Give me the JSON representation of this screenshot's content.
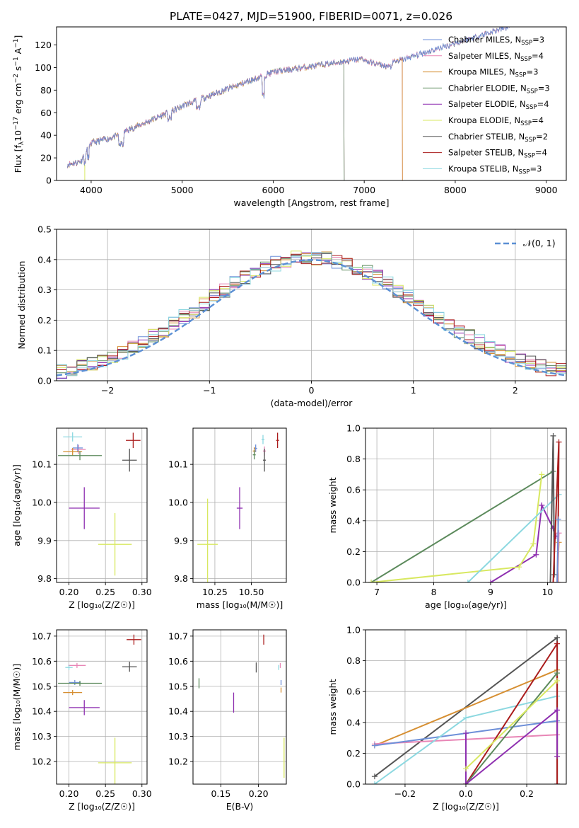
{
  "figure_title": "PLATE=0427, MJD=51900, FIBERID=0071, z=0.026",
  "colors": {
    "chabrier_miles": "#6d8fd8",
    "salpeter_miles": "#e886b6",
    "kroupa_miles": "#d68f32",
    "chabrier_elodie": "#5c8a5c",
    "salpeter_elodie": "#8e2fb0",
    "kroupa_elodie": "#d8e860",
    "chabrier_stelib": "#555555",
    "salpeter_stelib": "#aa1c1c",
    "kroupa_stelib": "#8cd8e0",
    "normal_curve": "#5b8fd4"
  },
  "chart_data": [
    {
      "id": "spectrum",
      "type": "line",
      "xlabel": "wavelength [Angstrom, rest frame]",
      "ylabel": "Flux [f",
      "ylabel_tail": "10",
      "ylabel_exp": "−17",
      "ylabel_rest": " erg cm",
      "ylabel_rest_exp": "−2",
      "ylabel_s": " s",
      "ylabel_s_exp": "−1",
      "ylabel_A": " A",
      "ylabel_A_exp": "−1",
      "ylabel_end": "]",
      "xlim": [
        3620,
        9220
      ],
      "ylim": [
        0,
        136
      ],
      "xticks": [
        "4000",
        "5000",
        "6000",
        "7000",
        "8000",
        "9000"
      ],
      "yticks": [
        "0",
        "20",
        "40",
        "60",
        "80",
        "100",
        "120"
      ],
      "series": [
        {
          "key": "chabrier_miles",
          "legend": "Chabrier MILES, N",
          "sub": "SSP",
          "eq": "=3",
          "end": 8700
        },
        {
          "key": "salpeter_miles",
          "legend": "Salpeter MILES, N",
          "sub": "SSP",
          "eq": "=4",
          "end": 8700
        },
        {
          "key": "kroupa_miles",
          "legend": "Kroupa MILES, N",
          "sub": "SSP",
          "eq": "=3",
          "end": 7420
        },
        {
          "key": "chabrier_elodie",
          "legend": "Chabrier ELODIE, N",
          "sub": "SSP",
          "eq": "=3",
          "end": 6780
        },
        {
          "key": "salpeter_elodie",
          "legend": "Salpeter ELODIE, N",
          "sub": "SSP",
          "eq": "=4",
          "end": 6780
        },
        {
          "key": "kroupa_elodie",
          "legend": "Kroupa ELODIE, N",
          "sub": "SSP",
          "eq": "=4",
          "end": 6780
        },
        {
          "key": "chabrier_stelib",
          "legend": "Chabrier STELIB, N",
          "sub": "SSP",
          "eq": "=2",
          "end": 8700
        },
        {
          "key": "salpeter_stelib",
          "legend": "Salpeter STELIB, N",
          "sub": "SSP",
          "eq": "=4",
          "end": 7420
        },
        {
          "key": "kroupa_stelib",
          "legend": "Kroupa STELIB, N",
          "sub": "SSP",
          "eq": "=3",
          "end": 8700
        }
      ]
    },
    {
      "id": "residuals",
      "type": "line",
      "xlabel": "(data-model)/error",
      "ylabel": "Normed distribution",
      "xlim": [
        -2.5,
        2.5
      ],
      "ylim": [
        0,
        0.5
      ],
      "xticks": [
        "−2",
        "−1",
        "0",
        "1",
        "2"
      ],
      "yticks": [
        "0.0",
        "0.1",
        "0.2",
        "0.3",
        "0.4",
        "0.5"
      ],
      "legend": "𝒩(0, 1)",
      "bin_width": 0.1
    },
    {
      "id": "age_vs_Z",
      "type": "scatter",
      "xlabel": "Z [log₁₀(Z/Z☉)]",
      "ylabel": "age  [log₁₀(age/yr)]",
      "xlim": [
        0.183,
        0.307
      ],
      "ylim": [
        9.79,
        10.195
      ],
      "xticks": [
        "0.20",
        "0.25",
        "0.30"
      ],
      "yticks": [
        "9.8",
        "9.9",
        "10.0",
        "10.1"
      ],
      "points": [
        {
          "key": "kroupa_stelib",
          "x": 0.205,
          "y": 10.172,
          "dx": 0.013,
          "dy": 0.012
        },
        {
          "key": "salpeter_miles",
          "x": 0.213,
          "y": 10.139,
          "dx": 0.01,
          "dy": 0.012
        },
        {
          "key": "chabrier_miles",
          "x": 0.212,
          "y": 10.143,
          "dx": 0.007,
          "dy": 0.01
        },
        {
          "key": "kroupa_miles",
          "x": 0.205,
          "y": 10.133,
          "dx": 0.013,
          "dy": 0.01
        },
        {
          "key": "chabrier_elodie",
          "x": 0.215,
          "y": 10.123,
          "dx": 0.03,
          "dy": 0.012
        },
        {
          "key": "salpeter_stelib",
          "x": 0.288,
          "y": 10.163,
          "dx": 0.01,
          "dy": 0.02
        },
        {
          "key": "chabrier_stelib",
          "x": 0.283,
          "y": 10.111,
          "dx": 0.01,
          "dy": 0.03
        },
        {
          "key": "salpeter_elodie",
          "x": 0.221,
          "y": 9.985,
          "dx": 0.021,
          "dy": 0.055
        },
        {
          "key": "kroupa_elodie",
          "x": 0.263,
          "y": 9.89,
          "dx": 0.023,
          "dy": 0.082
        }
      ]
    },
    {
      "id": "age_vs_mass",
      "type": "scatter",
      "xlabel": "mass [log₁₀(M/M☉)]",
      "ylabel": "",
      "xlim": [
        10.1,
        10.74
      ],
      "ylim": [
        9.79,
        10.195
      ],
      "xticks": [
        "10.25",
        "10.50"
      ],
      "yticks": [
        "9.8",
        "9.9",
        "10.0",
        "10.1"
      ],
      "points": [
        {
          "key": "kroupa_stelib",
          "x": 10.58,
          "y": 10.165,
          "dx": 0.01,
          "dy": 0.012
        },
        {
          "key": "salpeter_miles",
          "x": 10.59,
          "y": 10.135,
          "dx": 0.01,
          "dy": 0.012
        },
        {
          "key": "chabrier_miles",
          "x": 10.53,
          "y": 10.142,
          "dx": 0.01,
          "dy": 0.01
        },
        {
          "key": "kroupa_miles",
          "x": 10.52,
          "y": 10.135,
          "dx": 0.01,
          "dy": 0.01
        },
        {
          "key": "chabrier_elodie",
          "x": 10.52,
          "y": 10.125,
          "dx": 0.01,
          "dy": 0.012
        },
        {
          "key": "salpeter_stelib",
          "x": 10.68,
          "y": 10.163,
          "dx": 0.01,
          "dy": 0.02
        },
        {
          "key": "chabrier_stelib",
          "x": 10.59,
          "y": 10.111,
          "dx": 0.01,
          "dy": 0.03
        },
        {
          "key": "salpeter_elodie",
          "x": 10.42,
          "y": 9.985,
          "dx": 0.02,
          "dy": 0.055
        },
        {
          "key": "kroupa_elodie",
          "x": 10.2,
          "y": 9.89,
          "dx": 0.07,
          "dy": 0.12
        }
      ]
    },
    {
      "id": "weight_vs_age",
      "type": "line",
      "xlabel": "age  [log₁₀(age/yr)]",
      "ylabel": "mass weight",
      "xlim": [
        6.8,
        10.33
      ],
      "ylim": [
        0,
        1
      ],
      "xticks": [
        "7",
        "8",
        "9",
        "10"
      ],
      "yticks": [
        "0.0",
        "0.2",
        "0.4",
        "0.6",
        "0.8",
        "1.0"
      ],
      "series": [
        {
          "key": "chabrier_elodie",
          "x": [
            6.9,
            10.1
          ],
          "y": [
            0.0,
            0.72
          ]
        },
        {
          "key": "salpeter_elodie",
          "x": [
            9.0,
            9.8,
            9.9,
            10.1,
            10.15
          ],
          "y": [
            0.0,
            0.18,
            0.5,
            0.35,
            0.3
          ]
        },
        {
          "key": "kroupa_elodie",
          "x": [
            6.9,
            9.5,
            9.75,
            9.9
          ],
          "y": [
            0.0,
            0.1,
            0.25,
            0.7
          ]
        },
        {
          "key": "kroupa_stelib",
          "x": [
            8.6,
            10.2
          ],
          "y": [
            0.0,
            0.57
          ]
        },
        {
          "key": "chabrier_stelib",
          "x": [
            10.05,
            10.1,
            10.12
          ],
          "y": [
            0.0,
            0.95,
            0.05
          ]
        },
        {
          "key": "salpeter_stelib",
          "x": [
            10.1,
            10.2,
            10.18
          ],
          "y": [
            0.0,
            0.91,
            0.0
          ]
        },
        {
          "key": "kroupa_miles",
          "x": [
            10.17,
            10.2
          ],
          "y": [
            0.0,
            0.26
          ]
        },
        {
          "key": "salpeter_miles",
          "x": [
            10.17,
            10.2
          ],
          "y": [
            0.0,
            0.32
          ]
        },
        {
          "key": "chabrier_miles",
          "x": [
            10.17,
            10.19
          ],
          "y": [
            0.0,
            0.41
          ]
        }
      ]
    },
    {
      "id": "mass_vs_Z",
      "type": "scatter",
      "xlabel": "Z [log₁₀(Z/Z☉)]",
      "ylabel": "mass [log₁₀(M/M☉)]",
      "xlim": [
        0.183,
        0.307
      ],
      "ylim": [
        10.11,
        10.725
      ],
      "xticks": [
        "0.20",
        "0.25",
        "0.30"
      ],
      "yticks": [
        "10.2",
        "10.3",
        "10.4",
        "10.5",
        "10.6",
        "10.7"
      ],
      "points": [
        {
          "key": "salpeter_stelib",
          "x": 0.289,
          "y": 10.686,
          "dx": 0.01,
          "dy": 0.02
        },
        {
          "key": "salpeter_miles",
          "x": 0.211,
          "y": 10.583,
          "dx": 0.012,
          "dy": 0.01
        },
        {
          "key": "kroupa_stelib",
          "x": 0.2,
          "y": 10.575,
          "dx": 0.005,
          "dy": 0.01
        },
        {
          "key": "chabrier_stelib",
          "x": 0.283,
          "y": 10.578,
          "dx": 0.01,
          "dy": 0.02
        },
        {
          "key": "chabrier_miles",
          "x": 0.208,
          "y": 10.515,
          "dx": 0.008,
          "dy": 0.01
        },
        {
          "key": "chabrier_elodie",
          "x": 0.215,
          "y": 10.512,
          "dx": 0.03,
          "dy": 0.01
        },
        {
          "key": "kroupa_miles",
          "x": 0.205,
          "y": 10.475,
          "dx": 0.013,
          "dy": 0.01
        },
        {
          "key": "salpeter_elodie",
          "x": 0.221,
          "y": 10.415,
          "dx": 0.021,
          "dy": 0.03
        },
        {
          "key": "kroupa_elodie",
          "x": 0.263,
          "y": 10.195,
          "dx": 0.023,
          "dy": 0.1
        }
      ]
    },
    {
      "id": "mass_vs_ebv",
      "type": "scatter",
      "xlabel": "E(B-V)",
      "ylabel": "",
      "xlim": [
        0.113,
        0.237
      ],
      "ylim": [
        10.11,
        10.725
      ],
      "xticks": [
        "0.15",
        "0.20"
      ],
      "yticks": [
        "10.2",
        "10.3",
        "10.4",
        "10.5",
        "10.6",
        "10.7"
      ],
      "points": [
        {
          "key": "salpeter_stelib",
          "x": 0.207,
          "y": 10.686,
          "dy": 0.02
        },
        {
          "key": "salpeter_miles",
          "x": 0.229,
          "y": 10.583,
          "dy": 0.01
        },
        {
          "key": "kroupa_stelib",
          "x": 0.227,
          "y": 10.575,
          "dy": 0.01
        },
        {
          "key": "chabrier_stelib",
          "x": 0.197,
          "y": 10.575,
          "dy": 0.02
        },
        {
          "key": "chabrier_miles",
          "x": 0.23,
          "y": 10.515,
          "dy": 0.01
        },
        {
          "key": "chabrier_elodie",
          "x": 0.121,
          "y": 10.512,
          "dy": 0.02
        },
        {
          "key": "kroupa_miles",
          "x": 0.23,
          "y": 10.485,
          "dy": 0.01
        },
        {
          "key": "salpeter_elodie",
          "x": 0.167,
          "y": 10.435,
          "dy": 0.04
        },
        {
          "key": "kroupa_elodie",
          "x": 0.234,
          "y": 10.215,
          "dy": 0.08
        }
      ]
    },
    {
      "id": "weight_vs_Z",
      "type": "line",
      "xlabel": "Z [log₁₀(Z/Z☉)]",
      "ylabel": "mass weight",
      "xlim": [
        -0.33,
        0.33
      ],
      "ylim": [
        0,
        1
      ],
      "xticks": [
        "−0.2",
        "0.0",
        "0.2"
      ],
      "yticks": [
        "0.0",
        "0.2",
        "0.4",
        "0.6",
        "0.8",
        "1.0"
      ],
      "series": [
        {
          "key": "chabrier_stelib",
          "x": [
            -0.3,
            0.3,
            0.3
          ],
          "y": [
            0.05,
            0.95,
            0.0
          ]
        },
        {
          "key": "kroupa_miles",
          "x": [
            -0.3,
            0.3
          ],
          "y": [
            0.25,
            0.74
          ]
        },
        {
          "key": "salpeter_miles",
          "x": [
            -0.3,
            0.3
          ],
          "y": [
            0.26,
            0.32
          ]
        },
        {
          "key": "chabrier_miles",
          "x": [
            -0.3,
            0.0,
            0.3
          ],
          "y": [
            0.25,
            0.33,
            0.41
          ]
        },
        {
          "key": "kroupa_stelib",
          "x": [
            -0.3,
            0.0,
            0.3
          ],
          "y": [
            0.0,
            0.43,
            0.57
          ]
        },
        {
          "key": "salpeter_stelib",
          "x": [
            0.0,
            0.3,
            0.3
          ],
          "y": [
            0.0,
            0.91,
            0.0
          ]
        },
        {
          "key": "chabrier_elodie",
          "x": [
            0.0,
            0.3
          ],
          "y": [
            0.0,
            0.72
          ]
        },
        {
          "key": "salpeter_elodie",
          "x": [
            0.0,
            0.0,
            0.3,
            0.3
          ],
          "y": [
            0.33,
            0.0,
            0.48,
            0.18
          ]
        },
        {
          "key": "kroupa_elodie",
          "x": [
            0.0,
            0.3
          ],
          "y": [
            0.1,
            0.67
          ]
        }
      ]
    }
  ]
}
